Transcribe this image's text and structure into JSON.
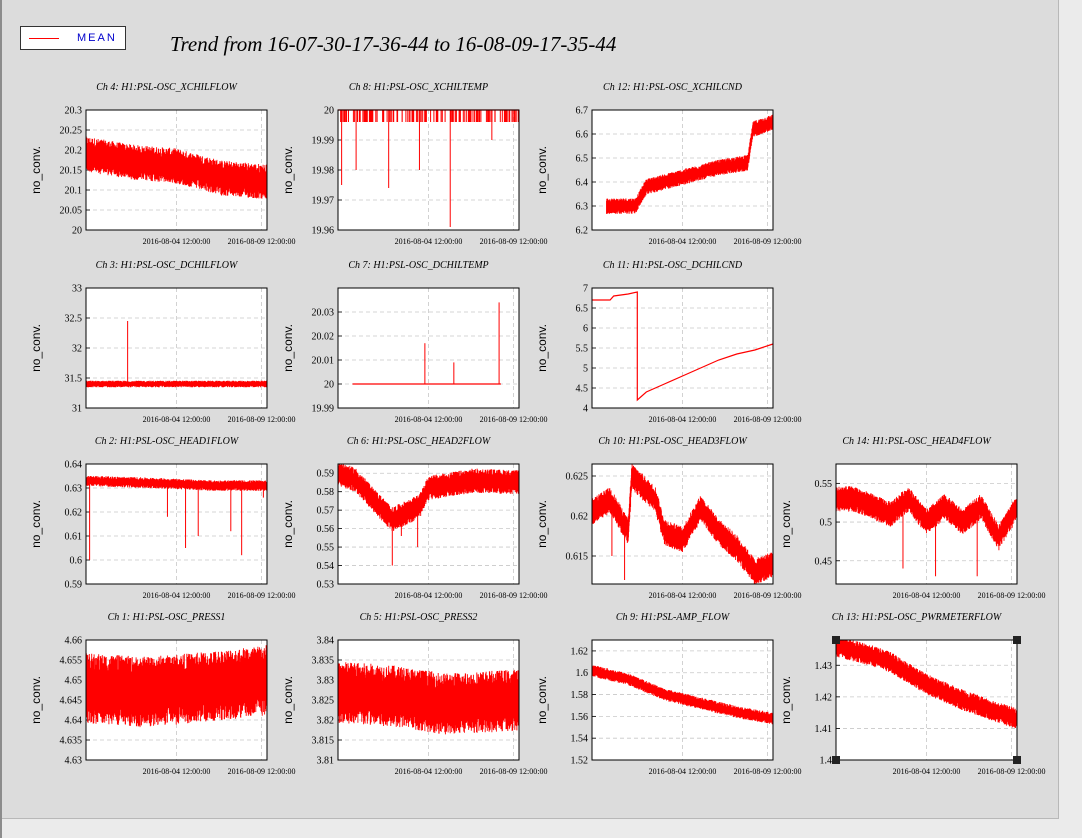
{
  "title": "Trend from 16-07-30-17-36-44 to 16-08-09-17-35-44",
  "legend": {
    "label": "MEAN",
    "color": "#ff0000"
  },
  "chart_data": [
    {
      "type": "line",
      "title": "Ch 4: H1:PSL-OSC_XCHILFLOW",
      "ylabel": "no_conv.",
      "ylim": [
        20,
        20.3
      ],
      "yticks": [
        "20",
        "20.05",
        "20.1",
        "20.15",
        "20.2",
        "20.25",
        "20.3"
      ],
      "xticks": [
        "2016-08-04 12:00:00",
        "2016-08-09 12:00:00"
      ],
      "grid": true,
      "series": [
        {
          "points": [
            [
              0,
              20.19
            ],
            [
              0.25,
              20.17
            ],
            [
              0.5,
              20.16
            ],
            [
              0.75,
              20.13
            ],
            [
              1,
              20.12
            ]
          ],
          "band": 0.04
        }
      ]
    },
    {
      "type": "line",
      "title": "Ch 8: H1:PSL-OSC_XCHILTEMP",
      "ylabel": "no_conv.",
      "ylim": [
        19.96,
        20
      ],
      "yticks": [
        "19.96",
        "19.97",
        "19.98",
        "19.99",
        "20"
      ],
      "xticks": [
        "2016-08-04 12:00:00",
        "2016-08-09 12:00:00"
      ],
      "grid": true,
      "series": [
        {
          "points": [
            [
              0,
              20
            ],
            [
              1,
              20
            ]
          ],
          "dips": [
            [
              0.02,
              19.975
            ],
            [
              0.1,
              19.98
            ],
            [
              0.28,
              19.974
            ],
            [
              0.45,
              19.98
            ],
            [
              0.62,
              19.961
            ],
            [
              0.85,
              19.99
            ]
          ]
        }
      ]
    },
    {
      "type": "line",
      "title": "Ch 12: H1:PSL-OSC_XCHILCND",
      "ylabel": "no_conv.",
      "ylim": [
        6.2,
        6.7
      ],
      "yticks": [
        "6.2",
        "6.3",
        "6.4",
        "6.5",
        "6.6",
        "6.7"
      ],
      "xticks": [
        "2016-08-04 12:00:00",
        "2016-08-09 12:00:00"
      ],
      "grid": true,
      "series": [
        {
          "points": [
            [
              0.08,
              6.3
            ],
            [
              0.24,
              6.3
            ],
            [
              0.3,
              6.38
            ],
            [
              0.5,
              6.42
            ],
            [
              0.7,
              6.46
            ],
            [
              0.86,
              6.48
            ],
            [
              0.89,
              6.62
            ],
            [
              1,
              6.65
            ]
          ],
          "band": 0.03
        }
      ]
    },
    {
      "type": "line",
      "title": "Ch 3: H1:PSL-OSC_DCHILFLOW",
      "ylabel": "no_conv.",
      "ylim": [
        31,
        33
      ],
      "yticks": [
        "31",
        "31.5",
        "32",
        "32.5",
        "33"
      ],
      "xticks": [
        "2016-08-04 12:00:00",
        "2016-08-09 12:00:00"
      ],
      "grid": true,
      "series": [
        {
          "points": [
            [
              0,
              31.4
            ],
            [
              1,
              31.4
            ]
          ],
          "band": 0.05,
          "spikes": [
            [
              0.23,
              32.45
            ]
          ]
        }
      ]
    },
    {
      "type": "line",
      "title": "Ch 7: H1:PSL-OSC_DCHILTEMP",
      "ylabel": "no_conv.",
      "ylim": [
        19.99,
        20.04
      ],
      "yticks": [
        "19.99",
        "20",
        "20.01",
        "20.02",
        "20.03"
      ],
      "xticks": [
        "2016-08-04 12:00:00",
        "2016-08-09 12:00:00"
      ],
      "grid": true,
      "series": [
        {
          "points": [
            [
              0.08,
              20
            ],
            [
              0.9,
              20
            ]
          ],
          "spikes": [
            [
              0.48,
              20.017
            ],
            [
              0.64,
              20.009
            ],
            [
              0.89,
              20.034
            ]
          ]
        }
      ]
    },
    {
      "type": "line",
      "title": "Ch 11: H1:PSL-OSC_DCHILCND",
      "ylabel": "no_conv.",
      "ylim": [
        4,
        7
      ],
      "yticks": [
        "4",
        "4.5",
        "5",
        "5.5",
        "6",
        "6.5",
        "7"
      ],
      "xticks": [
        "2016-08-04 12:00:00",
        "2016-08-09 12:00:00"
      ],
      "grid": true,
      "series": [
        {
          "points": [
            [
              0,
              6.7
            ],
            [
              0.1,
              6.7
            ],
            [
              0.12,
              6.8
            ],
            [
              0.2,
              6.85
            ],
            [
              0.25,
              6.9
            ],
            [
              0.25,
              4.2
            ],
            [
              0.3,
              4.4
            ],
            [
              0.4,
              4.6
            ],
            [
              0.5,
              4.8
            ],
            [
              0.6,
              5
            ],
            [
              0.7,
              5.2
            ],
            [
              0.8,
              5.35
            ],
            [
              0.9,
              5.45
            ],
            [
              1,
              5.6
            ]
          ]
        }
      ]
    },
    {
      "type": "line",
      "title": "Ch 2: H1:PSL-OSC_HEAD1FLOW",
      "ylabel": "no_conv.",
      "ylim": [
        0.59,
        0.64
      ],
      "yticks": [
        "0.59",
        "0.6",
        "0.61",
        "0.62",
        "0.63",
        "0.64"
      ],
      "xticks": [
        "2016-08-04 12:00:00",
        "2016-08-09 12:00:00"
      ],
      "grid": true,
      "series": [
        {
          "points": [
            [
              0,
              0.633
            ],
            [
              0.4,
              0.632
            ],
            [
              0.7,
              0.631
            ],
            [
              1,
              0.631
            ]
          ],
          "band": 0.002,
          "dips": [
            [
              0.02,
              0.6
            ],
            [
              0.45,
              0.618
            ],
            [
              0.55,
              0.605
            ],
            [
              0.62,
              0.61
            ],
            [
              0.8,
              0.612
            ],
            [
              0.86,
              0.602
            ],
            [
              0.98,
              0.626
            ]
          ]
        }
      ]
    },
    {
      "type": "line",
      "title": "Ch 6: H1:PSL-OSC_HEAD2FLOW",
      "ylabel": "no_conv.",
      "ylim": [
        0.53,
        0.595
      ],
      "yticks": [
        "0.53",
        "0.54",
        "0.55",
        "0.56",
        "0.57",
        "0.58",
        "0.59"
      ],
      "xticks": [
        "2016-08-04 12:00:00",
        "2016-08-09 12:00:00"
      ],
      "grid": true,
      "series": [
        {
          "points": [
            [
              0,
              0.59
            ],
            [
              0.1,
              0.586
            ],
            [
              0.2,
              0.575
            ],
            [
              0.3,
              0.565
            ],
            [
              0.45,
              0.572
            ],
            [
              0.5,
              0.582
            ],
            [
              0.75,
              0.586
            ],
            [
              1,
              0.585
            ]
          ],
          "band": 0.006,
          "dips": [
            [
              0.3,
              0.54
            ],
            [
              0.44,
              0.55
            ],
            [
              0.35,
              0.556
            ]
          ]
        }
      ]
    },
    {
      "type": "line",
      "title": "Ch 10: H1:PSL-OSC_HEAD3FLOW",
      "ylabel": "no_conv.",
      "ylim": [
        0.6115,
        0.6265
      ],
      "yticks": [
        "0.615",
        "0.62",
        "0.625"
      ],
      "xticks": [
        "2016-08-04 12:00:00",
        "2016-08-09 12:00:00"
      ],
      "grid": true,
      "series": [
        {
          "points": [
            [
              0,
              0.6205
            ],
            [
              0.1,
              0.622
            ],
            [
              0.2,
              0.618
            ],
            [
              0.22,
              0.625
            ],
            [
              0.35,
              0.622
            ],
            [
              0.4,
              0.618
            ],
            [
              0.5,
              0.617
            ],
            [
              0.6,
              0.621
            ],
            [
              0.7,
              0.618
            ],
            [
              0.8,
              0.616
            ],
            [
              0.9,
              0.613
            ],
            [
              1,
              0.614
            ]
          ],
          "band": 0.0015,
          "dips": [
            [
              0.18,
              0.612
            ],
            [
              0.11,
              0.615
            ]
          ]
        }
      ]
    },
    {
      "type": "line",
      "title": "Ch 14: H1:PSL-OSC_HEAD4FLOW",
      "ylabel": "no_conv.",
      "ylim": [
        0.42,
        0.575
      ],
      "yticks": [
        "0.45",
        "0.5",
        "0.55"
      ],
      "xticks": [
        "2016-08-04 12:00:00",
        "2016-08-09 12:00:00"
      ],
      "grid": true,
      "series": [
        {
          "points": [
            [
              0,
              0.53
            ],
            [
              0.1,
              0.53
            ],
            [
              0.2,
              0.52
            ],
            [
              0.3,
              0.51
            ],
            [
              0.4,
              0.53
            ],
            [
              0.5,
              0.5
            ],
            [
              0.6,
              0.52
            ],
            [
              0.7,
              0.5
            ],
            [
              0.8,
              0.52
            ],
            [
              0.9,
              0.48
            ],
            [
              1,
              0.52
            ]
          ],
          "band": 0.015,
          "dips": [
            [
              0.37,
              0.44
            ],
            [
              0.55,
              0.43
            ],
            [
              0.78,
              0.43
            ]
          ]
        }
      ]
    },
    {
      "type": "line",
      "title": "Ch 1: H1:PSL-OSC_PRESS1",
      "ylabel": "no_conv.",
      "ylim": [
        4.63,
        4.66
      ],
      "yticks": [
        "4.63",
        "4.635",
        "4.64",
        "4.645",
        "4.65",
        "4.655",
        "4.66"
      ],
      "xticks": [
        "2016-08-04 12:00:00",
        "2016-08-09 12:00:00"
      ],
      "grid": true,
      "series": [
        {
          "points": [
            [
              0,
              4.648
            ],
            [
              0.3,
              4.647
            ],
            [
              0.6,
              4.648
            ],
            [
              1,
              4.65
            ]
          ],
          "band": 0.008
        }
      ]
    },
    {
      "type": "line",
      "title": "Ch 5: H1:PSL-OSC_PRESS2",
      "ylabel": "no_conv.",
      "ylim": [
        3.81,
        3.84
      ],
      "yticks": [
        "3.81",
        "3.815",
        "3.82",
        "3.825",
        "3.83",
        "3.835",
        "3.84"
      ],
      "xticks": [
        "2016-08-04 12:00:00",
        "2016-08-09 12:00:00"
      ],
      "grid": true,
      "series": [
        {
          "points": [
            [
              0,
              3.827
            ],
            [
              0.3,
              3.826
            ],
            [
              0.6,
              3.824
            ],
            [
              1,
              3.825
            ]
          ],
          "band": 0.007
        }
      ]
    },
    {
      "type": "line",
      "title": "Ch 9: H1:PSL-AMP_FLOW",
      "ylabel": "no_conv.",
      "ylim": [
        1.52,
        1.63
      ],
      "yticks": [
        "1.52",
        "1.54",
        "1.56",
        "1.58",
        "1.6",
        "1.62"
      ],
      "xticks": [
        "2016-08-04 12:00:00",
        "2016-08-09 12:00:00"
      ],
      "grid": true,
      "series": [
        {
          "points": [
            [
              0,
              1.602
            ],
            [
              0.2,
              1.594
            ],
            [
              0.4,
              1.58
            ],
            [
              0.6,
              1.572
            ],
            [
              0.8,
              1.564
            ],
            [
              1,
              1.558
            ]
          ],
          "band": 0.005
        }
      ]
    },
    {
      "type": "line",
      "title": "Ch 13: H1:PSL-OSC_PWRMETERFLOW",
      "ylabel": "no_conv.",
      "ylim": [
        1.4,
        1.438
      ],
      "yticks": [
        "1.4",
        "1.41",
        "1.42",
        "1.43"
      ],
      "xticks": [
        "2016-08-04 12:00:00",
        "2016-08-09 12:00:00"
      ],
      "grid": true,
      "series": [
        {
          "points": [
            [
              0,
              1.436
            ],
            [
              0.2,
              1.433
            ],
            [
              0.3,
              1.431
            ],
            [
              0.5,
              1.424
            ],
            [
              0.7,
              1.419
            ],
            [
              0.85,
              1.416
            ],
            [
              1,
              1.413
            ]
          ],
          "band": 0.003
        }
      ]
    }
  ]
}
